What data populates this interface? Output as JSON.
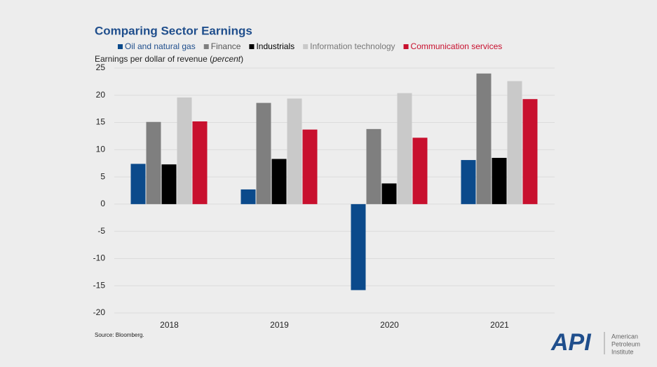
{
  "chart_data": {
    "type": "bar",
    "title": "Comparing Sector Earnings",
    "y_label": [
      "Earnings per dollar of revenue (",
      "percent",
      ")"
    ],
    "categories": [
      "2018",
      "2019",
      "2020",
      "2021"
    ],
    "series": [
      {
        "name": "Oil and natural gas",
        "color": "#0b4a8b",
        "values": [
          7.4,
          2.7,
          -15.8,
          8.1
        ]
      },
      {
        "name": "Finance",
        "color": "#7f7f7f",
        "values": [
          15.1,
          18.6,
          13.8,
          24.0
        ]
      },
      {
        "name": "Industrials",
        "color": "#000000",
        "values": [
          7.3,
          8.3,
          3.8,
          8.5
        ]
      },
      {
        "name": "Information technology",
        "color": "#c9c9c9",
        "values": [
          19.6,
          19.4,
          20.4,
          22.6
        ]
      },
      {
        "name": "Communication services",
        "color": "#c8102e",
        "values": [
          15.2,
          13.7,
          12.2,
          19.3
        ]
      }
    ],
    "ylim": [
      -20,
      25
    ],
    "yticks": [
      -20,
      -15,
      -10,
      -5,
      0,
      5,
      10,
      15,
      20,
      25
    ],
    "grid": true,
    "source": "Source: Bloomberg."
  },
  "logo": {
    "mark": "API",
    "name": [
      "American",
      "Petroleum",
      "Institute"
    ]
  }
}
